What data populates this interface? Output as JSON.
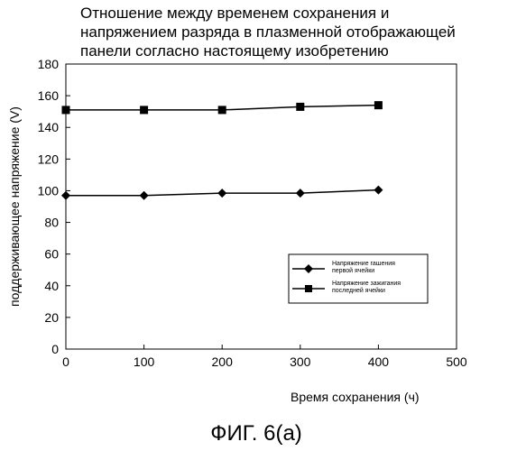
{
  "chart_data": {
    "type": "line",
    "title_lines": [
      "Отношение между временем сохранения и",
      "напряжением разряда в плазменной отображающей",
      "панели согласно настоящему изобретению"
    ],
    "xlabel": "Время сохранения (ч)",
    "ylabel": "поддерживающее напряжение (V)",
    "xlim": [
      0,
      500
    ],
    "ylim": [
      0,
      180
    ],
    "x_ticks": [
      0,
      100,
      200,
      300,
      400,
      500
    ],
    "y_ticks": [
      0,
      20,
      40,
      60,
      80,
      100,
      120,
      140,
      160,
      180
    ],
    "grid": false,
    "legend_position": "right, lower-middle",
    "series": [
      {
        "name_lines": [
          "Напряжение гашения",
          "первой ячейки"
        ],
        "marker": "diamond",
        "color": "#000000",
        "x": [
          0,
          100,
          200,
          300,
          400
        ],
        "y": [
          97,
          97,
          98.5,
          98.5,
          100.5
        ]
      },
      {
        "name_lines": [
          "Напряжение зажигания",
          "последней ячейки"
        ],
        "marker": "square",
        "color": "#000000",
        "x": [
          0,
          100,
          200,
          300,
          400
        ],
        "y": [
          151,
          151,
          151,
          153,
          154
        ]
      }
    ]
  },
  "figure_caption": "ФИГ. 6(a)"
}
